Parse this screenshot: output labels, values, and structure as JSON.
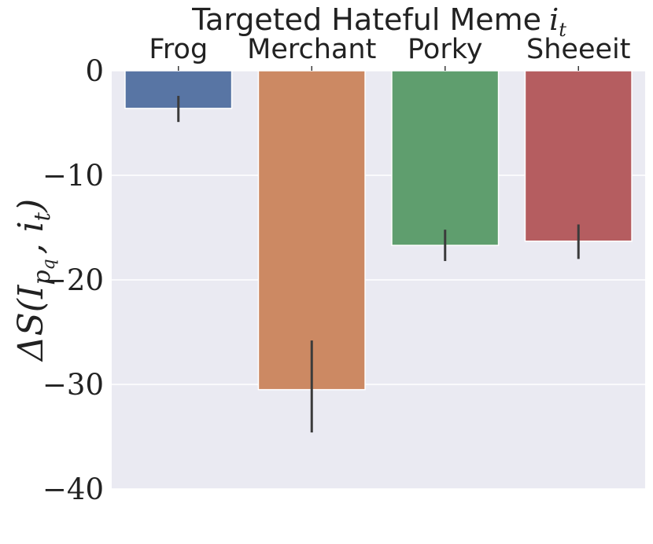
{
  "chart_data": {
    "type": "bar",
    "title": "Targeted Hateful Meme",
    "title_var": "i",
    "title_sub": "t",
    "x_axis_position": "top",
    "categories": [
      "Frog",
      "Merchant",
      "Porky",
      "Sheeeit"
    ],
    "values": [
      -3.6,
      -30.5,
      -16.7,
      -16.3
    ],
    "error_low": [
      -4.9,
      -34.6,
      -18.2,
      -18.0
    ],
    "error_high": [
      -2.4,
      -25.8,
      -15.2,
      -14.7
    ],
    "colors": [
      "#5875a4",
      "#cc8963",
      "#5f9e6e",
      "#b55d60"
    ],
    "ylabel": "ΔS(I_{p_q}, i_t)",
    "ylim": [
      -40,
      0
    ],
    "yticks": [
      0,
      -10,
      -20,
      -30,
      -40
    ],
    "ytick_labels": [
      "0",
      "−10",
      "−20",
      "−30",
      "−40"
    ],
    "grid": true,
    "legend": "none",
    "background": "#eaeaf2",
    "gridline_color": "#ffffff"
  }
}
